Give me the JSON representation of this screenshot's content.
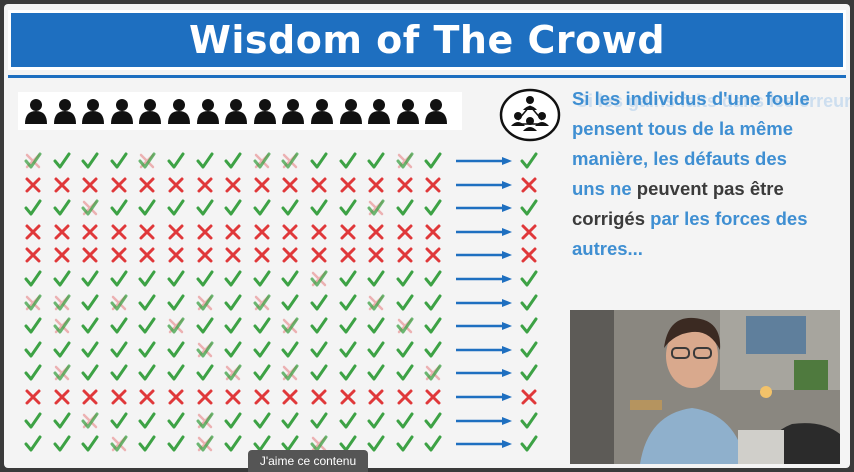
{
  "slide": {
    "title": "Wisdom of The Crowd",
    "accent_color": "#1e6fc0",
    "check_color": "#3da245",
    "cross_color": "#e0383a",
    "text_blue": "#3f8fd2",
    "text_dark": "#3b3b3b",
    "people_count": 15,
    "rows": [
      "mcccmcccmmcccmc",
      "xxxxxxxxxxxxxxx",
      "ccmcccccccccmcc",
      "xxxxxxxxxxxxxxx",
      "xxxxxxxxxxxxxxx",
      "ccccccccccmcccc",
      "mmcmccmcmcccmcc",
      "cmcccmcccmcccmc",
      "ccccccmcccccccc",
      "cmcccccmcmccccm",
      "xxxxxxxxxxxxxxx",
      "ccmcccmcccccccc",
      "cccmccmcccmcccc"
    ],
    "results": [
      "c",
      "x",
      "c",
      "x",
      "x",
      "c",
      "c",
      "c",
      "c",
      "c",
      "x",
      "c",
      "c"
    ],
    "ghost_text": "Si les gains faits dans les erreurs de la foule",
    "paragraph": [
      {
        "text": "Si les individus d'une foule",
        "style": "blue"
      },
      {
        "text": "pensent tous de la même",
        "style": "blue"
      },
      {
        "text": "manière, les défauts des",
        "style": "blue"
      },
      {
        "text": "uns ne ",
        "style": "blue",
        "inline": true
      },
      {
        "text": "peuvent pas être",
        "style": "dark"
      },
      {
        "text": "corrigés ",
        "style": "dark",
        "inline": true
      },
      {
        "text": "par les forces des",
        "style": "blue"
      },
      {
        "text": "autres...",
        "style": "blue"
      }
    ]
  },
  "overlay": {
    "like_label": "J'aime ce contenu"
  },
  "icons": {
    "person": "person-icon",
    "crowd": "crowd-network-icon",
    "check": "check-icon",
    "cross": "cross-icon",
    "arrow": "arrow-right-icon"
  }
}
